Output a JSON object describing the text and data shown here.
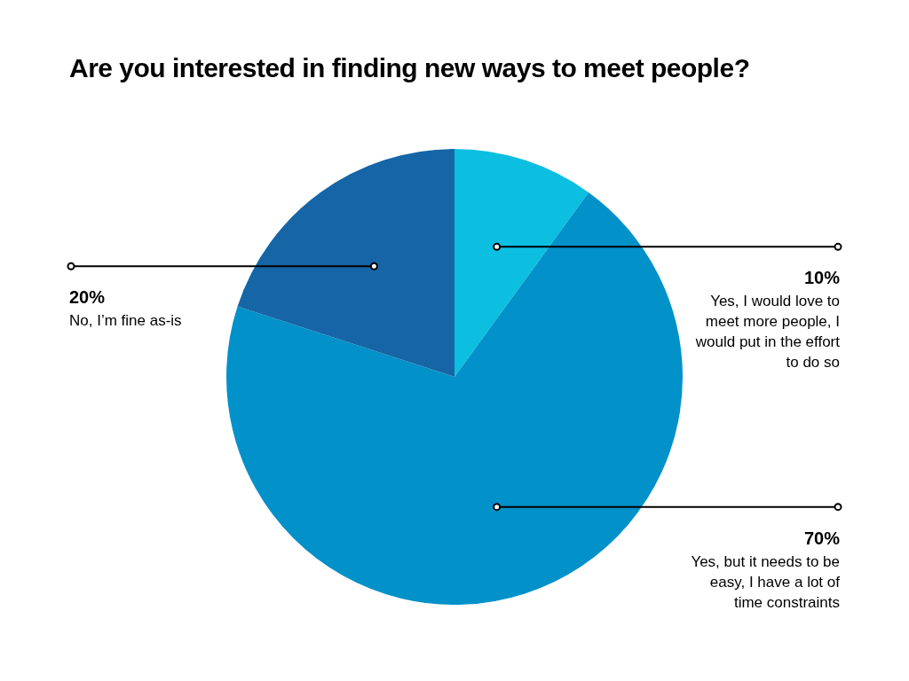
{
  "chart_data": {
    "type": "pie",
    "title": "Are you interested in finding new ways to meet people?",
    "categories": [
      "Yes, I would love to meet more people, I would put in the effort to do so",
      "Yes, but it needs to be easy, I have a lot of time constraints",
      "No, I’m fine as-is"
    ],
    "values": [
      10,
      70,
      20
    ],
    "colors": [
      "#0cbfe0",
      "#0391c9",
      "#1565a7"
    ],
    "value_labels": [
      "10%",
      "70%",
      "20%"
    ],
    "legend": false
  }
}
